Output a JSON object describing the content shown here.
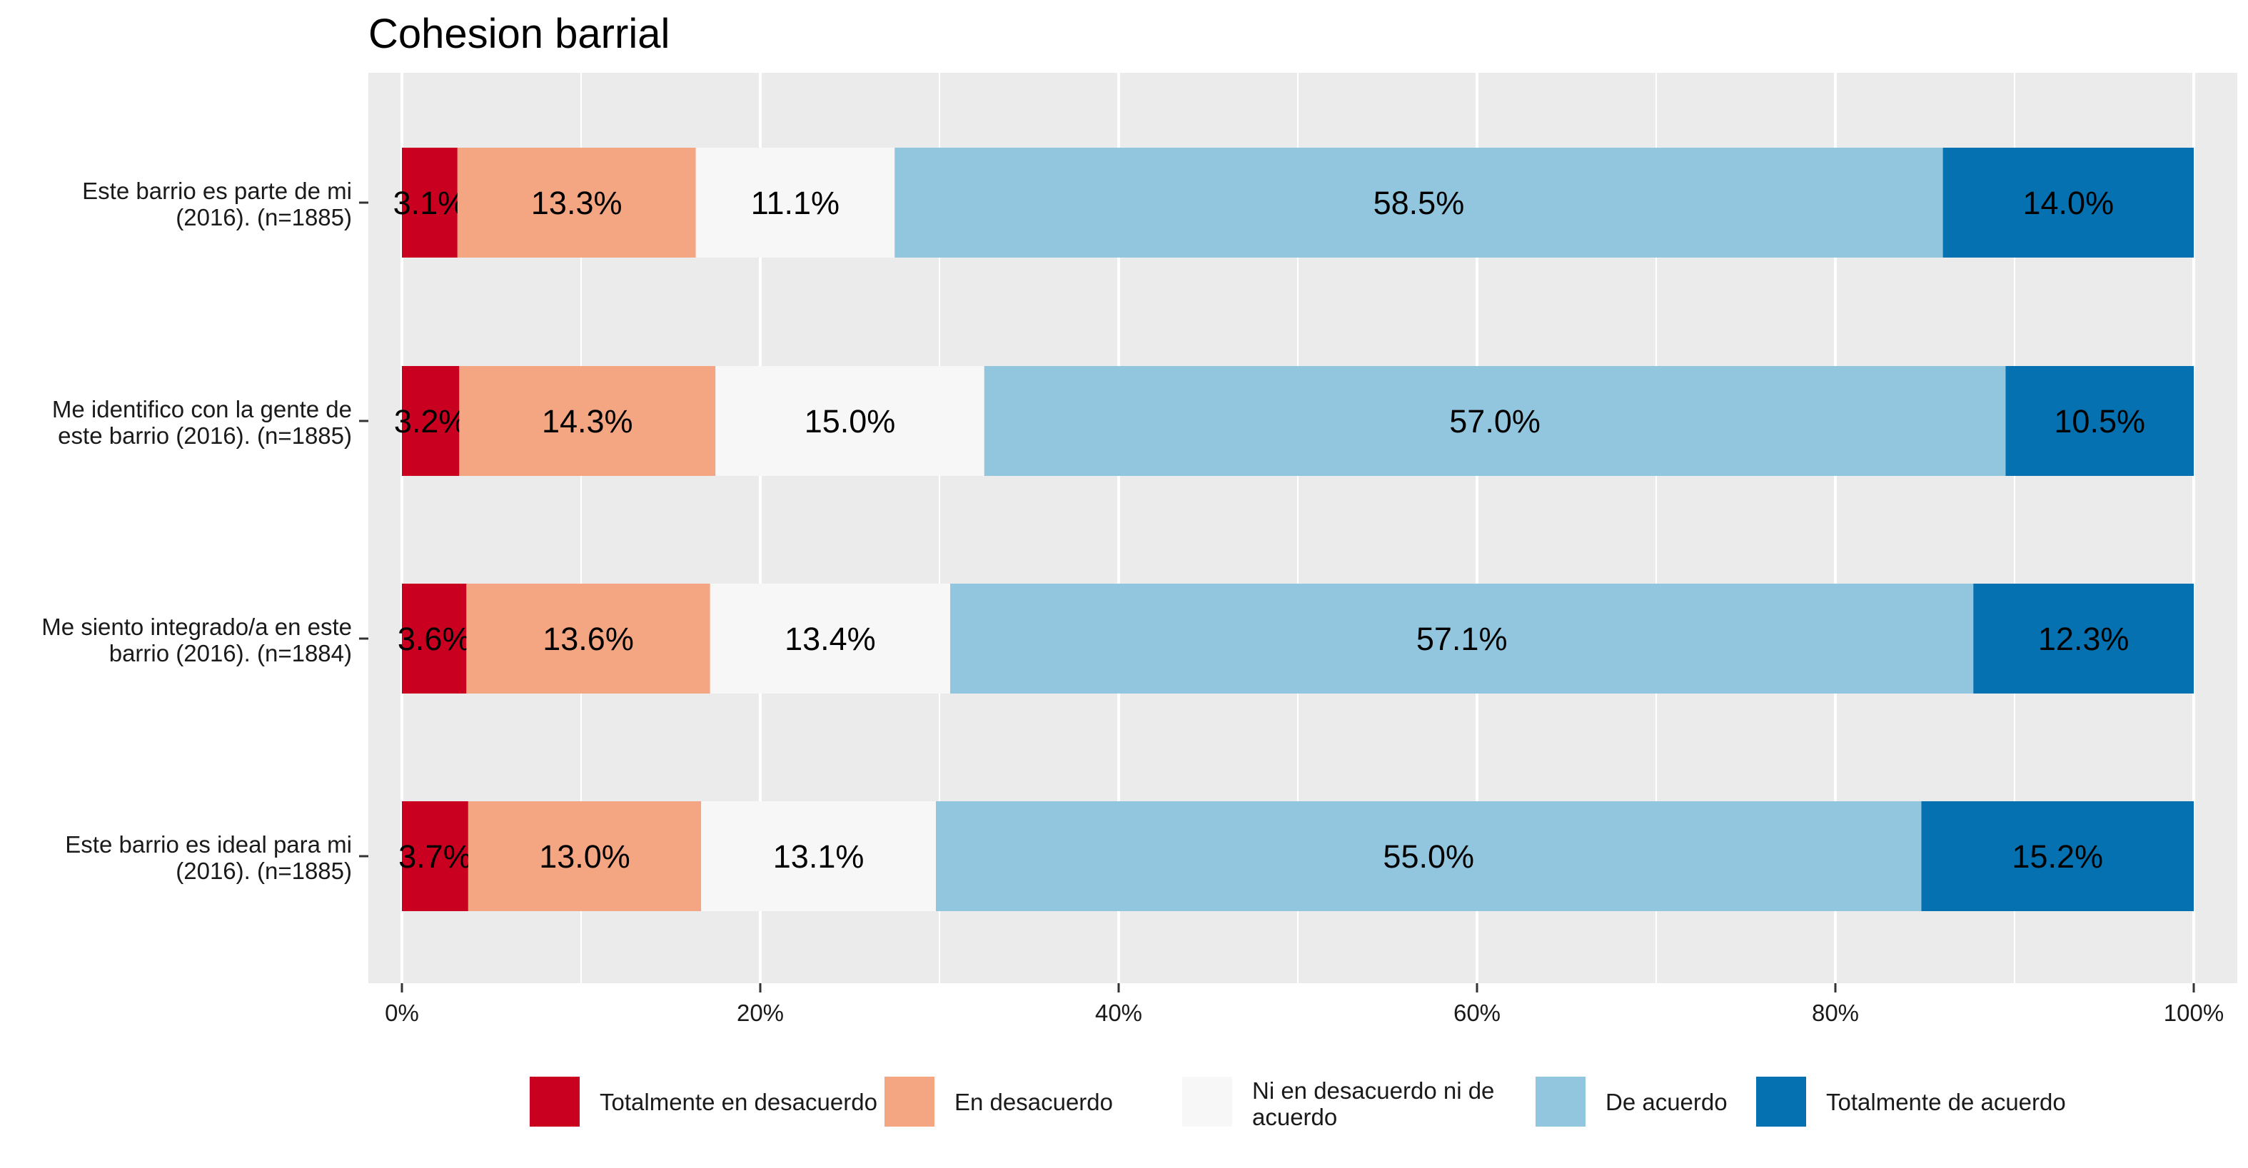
{
  "chart_data": {
    "type": "bar",
    "orientation": "horizontal",
    "stacked": true,
    "title": "Cohesion barrial",
    "xlabel": "",
    "ylabel": "",
    "xlim": [
      0,
      100
    ],
    "x_ticks": [
      "0%",
      "20%",
      "40%",
      "60%",
      "80%",
      "100%"
    ],
    "grid": true,
    "legend_position": "bottom",
    "categories": [
      [
        "Este barrio es parte de mi",
        "(2016). (n=1885)"
      ],
      [
        "Me identifico con la gente de",
        "este barrio (2016). (n=1885)"
      ],
      [
        "Me siento integrado/a en este",
        "barrio (2016). (n=1884)"
      ],
      [
        "Este barrio es ideal para mi",
        "(2016). (n=1885)"
      ]
    ],
    "series": [
      {
        "name": [
          "Totalmente en desacuerdo"
        ],
        "color": "#CA0020",
        "values": [
          3.1,
          3.2,
          3.6,
          3.7
        ],
        "labels": [
          "3.1%",
          "3.2%",
          "3.6%",
          "3.7%"
        ]
      },
      {
        "name": [
          "En desacuerdo"
        ],
        "color": "#F4A582",
        "values": [
          13.3,
          14.3,
          13.6,
          13.0
        ],
        "labels": [
          "13.3%",
          "14.3%",
          "13.6%",
          "13.0%"
        ]
      },
      {
        "name": [
          "Ni en desacuerdo ni de",
          "acuerdo"
        ],
        "color": "#F7F7F7",
        "values": [
          11.1,
          15.0,
          13.4,
          13.1
        ],
        "labels": [
          "11.1%",
          "15.0%",
          "13.4%",
          "13.1%"
        ]
      },
      {
        "name": [
          "De acuerdo"
        ],
        "color": "#92C5DE",
        "values": [
          58.5,
          57.0,
          57.1,
          55.0
        ],
        "labels": [
          "58.5%",
          "57.0%",
          "57.1%",
          "55.0%"
        ]
      },
      {
        "name": [
          "Totalmente de acuerdo"
        ],
        "color": "#0571B0",
        "values": [
          14.0,
          10.5,
          12.3,
          15.2
        ],
        "labels": [
          "14.0%",
          "10.5%",
          "12.3%",
          "15.2%"
        ]
      }
    ],
    "colors": {
      "panel_background": "#EBEBEB",
      "grid": "#FFFFFF"
    }
  }
}
